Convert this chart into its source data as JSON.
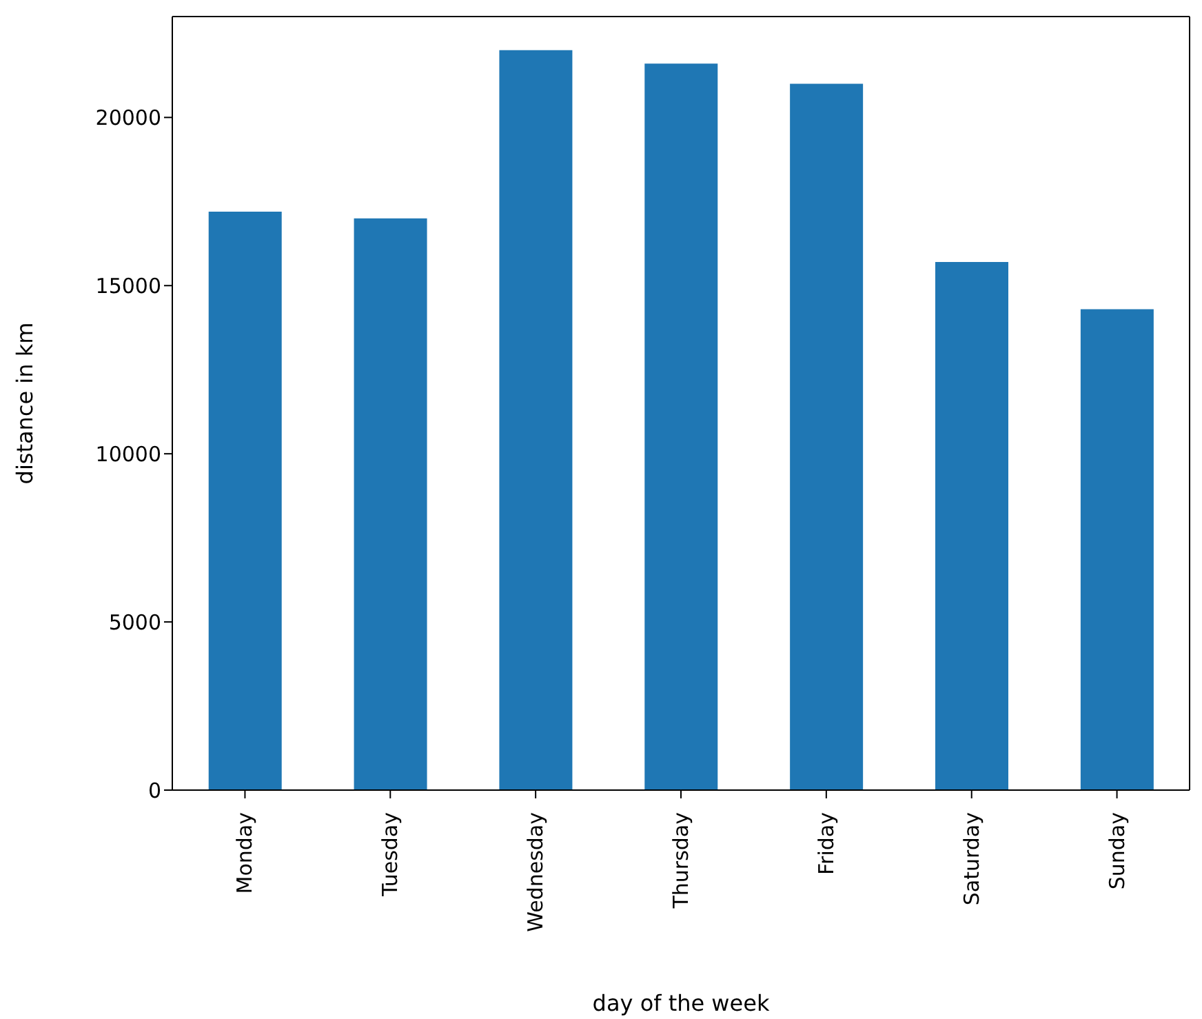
{
  "chart_data": {
    "type": "bar",
    "xlabel": "day of the week",
    "ylabel": "distance in km",
    "categories": [
      "Monday",
      "Tuesday",
      "Wednesday",
      "Thursday",
      "Friday",
      "Saturday",
      "Sunday"
    ],
    "values": [
      17200,
      17000,
      22000,
      21600,
      21000,
      15700,
      14300
    ],
    "color": "#1f77b4",
    "ylim": [
      0,
      23000
    ],
    "yticks": [
      0,
      5000,
      10000,
      15000,
      20000
    ],
    "grid": false,
    "legend": false
  }
}
